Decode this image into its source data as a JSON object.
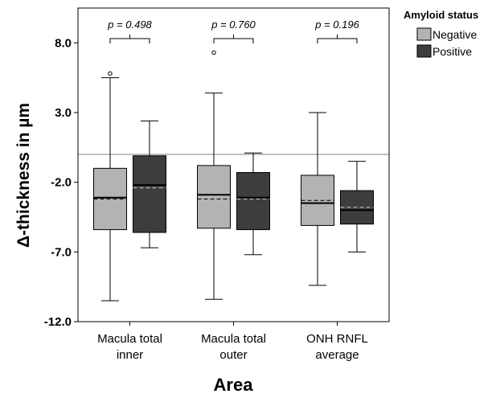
{
  "chart_data": {
    "type": "box",
    "xlabel": "Area",
    "ylabel": "Δ-thickness in µm",
    "ylim": [
      -12.0,
      10.5
    ],
    "yticks": [
      -12.0,
      -7.0,
      -2.0,
      3.0,
      8.0
    ],
    "ytick_labels": [
      "-12.0",
      "-7.0",
      "-2.0",
      "3.0",
      "8.0"
    ],
    "reference_line": 0.0,
    "categories": [
      [
        "Macula total",
        "inner"
      ],
      [
        "Macula total",
        "outer"
      ],
      [
        "ONH RNFL",
        "average"
      ]
    ],
    "legend": {
      "title": "Amyloid status",
      "placement": "top-right outside",
      "entries": [
        "Negative",
        "Positive"
      ]
    },
    "colors": {
      "Negative": "#b3b3b3",
      "Positive": "#3d3d3d",
      "reference": "#999999"
    },
    "series": [
      {
        "name": "Negative",
        "boxes": [
          {
            "whisker_low": -10.5,
            "q1": -5.4,
            "median": -3.1,
            "mean": -3.2,
            "q3": -1.0,
            "whisker_high": 5.5,
            "outliers": [
              5.8
            ]
          },
          {
            "whisker_low": -10.4,
            "q1": -5.3,
            "median": -2.9,
            "mean": -3.2,
            "q3": -0.8,
            "whisker_high": 4.4,
            "outliers": [
              7.3
            ]
          },
          {
            "whisker_low": -9.4,
            "q1": -5.1,
            "median": -3.5,
            "mean": -3.3,
            "q3": -1.5,
            "whisker_high": 3.0,
            "outliers": []
          }
        ]
      },
      {
        "name": "Positive",
        "boxes": [
          {
            "whisker_low": -6.7,
            "q1": -5.6,
            "median": -2.2,
            "mean": -2.4,
            "q3": -0.1,
            "whisker_high": 2.4,
            "outliers": []
          },
          {
            "whisker_low": -7.2,
            "q1": -5.4,
            "median": -3.1,
            "mean": -3.2,
            "q3": -1.3,
            "whisker_high": 0.1,
            "outliers": []
          },
          {
            "whisker_low": -7.0,
            "q1": -5.0,
            "median": -4.0,
            "mean": -3.8,
            "q3": -2.6,
            "whisker_high": -0.5,
            "outliers": []
          }
        ]
      }
    ],
    "annotations": [
      "p = 0.498",
      "p = 0.760",
      "p = 0.196"
    ]
  }
}
